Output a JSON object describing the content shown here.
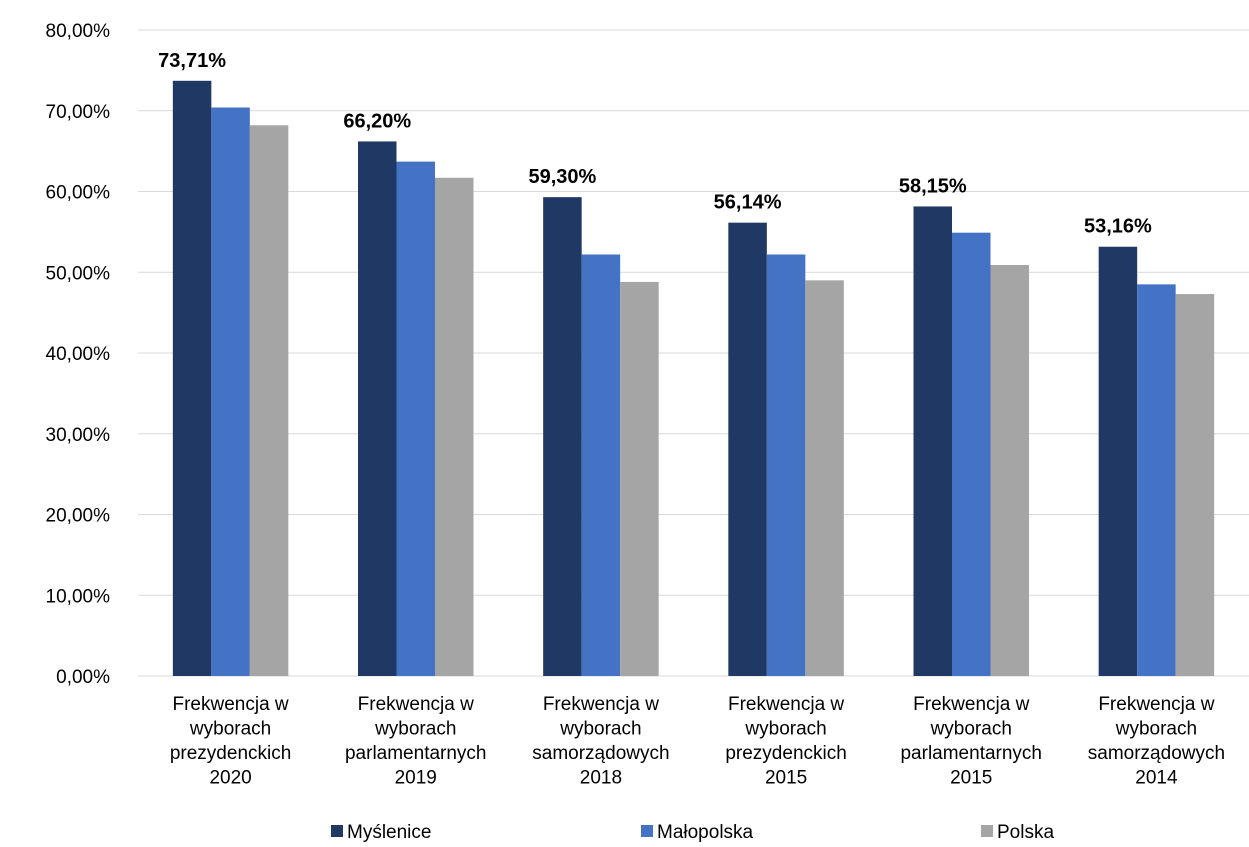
{
  "chart_data": {
    "type": "bar",
    "categories": [
      [
        "Frekwencja w",
        "wyborach",
        "prezydenckich",
        "2020"
      ],
      [
        "Frekwencja w",
        "wyborach",
        "parlamentarnych",
        "2019"
      ],
      [
        "Frekwencja w",
        "wyborach",
        "samorządowych",
        "2018"
      ],
      [
        "Frekwencja w",
        "wyborach",
        "prezydenckich",
        "2015"
      ],
      [
        "Frekwencja w",
        "wyborach",
        "parlamentarnych",
        "2015"
      ],
      [
        "Frekwencja w",
        "wyborach",
        "samorządowych",
        "2014"
      ]
    ],
    "series": [
      {
        "name": "Myślenice",
        "color": "#203864",
        "values": [
          73.71,
          66.2,
          59.3,
          56.14,
          58.15,
          53.16
        ]
      },
      {
        "name": "Małopolska",
        "color": "#4472c4",
        "values": [
          70.4,
          63.7,
          52.2,
          52.2,
          54.9,
          48.5
        ]
      },
      {
        "name": "Polska",
        "color": "#a5a5a5",
        "values": [
          68.2,
          61.7,
          48.8,
          49.0,
          50.9,
          47.3
        ]
      }
    ],
    "data_labels": [
      "73,71%",
      "66,20%",
      "59,30%",
      "56,14%",
      "58,15%",
      "53,16%"
    ],
    "ylim": [
      0,
      80
    ],
    "yticks": [
      "0,00%",
      "10,00%",
      "20,00%",
      "30,00%",
      "40,00%",
      "50,00%",
      "60,00%",
      "70,00%",
      "80,00%"
    ],
    "grid": true,
    "legend_position": "bottom",
    "title": "",
    "xlabel": "",
    "ylabel": ""
  }
}
